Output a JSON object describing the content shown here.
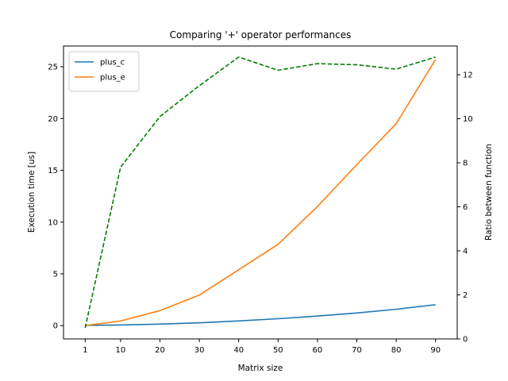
{
  "chart_data": {
    "type": "line",
    "title": "Comparing '+' operator performances",
    "xlabel": "Matrix size",
    "ylabel": "Execution time [us]",
    "y2label": "Ratio between function",
    "x": [
      1,
      10,
      20,
      30,
      40,
      50,
      60,
      70,
      80,
      90
    ],
    "xticks": [
      1,
      10,
      20,
      30,
      40,
      50,
      60,
      70,
      80,
      90
    ],
    "xlim": [
      -4.5,
      95.5
    ],
    "ylim": [
      -1.2858,
      27.0
    ],
    "yticks": [
      0,
      5,
      10,
      15,
      20,
      25
    ],
    "y2lim": [
      0,
      13.3
    ],
    "y2ticks": [
      0,
      2,
      4,
      6,
      8,
      10,
      12
    ],
    "legend_position": "top-left",
    "series": [
      {
        "name": "plus_c",
        "axis": "left",
        "color": "#1f77b4",
        "style": "solid",
        "values": [
          0.02,
          0.06,
          0.15,
          0.27,
          0.45,
          0.67,
          0.92,
          1.22,
          1.58,
          2.02
        ]
      },
      {
        "name": "plus_e",
        "axis": "left",
        "color": "#ff7f0e",
        "style": "solid",
        "values": [
          0.0,
          0.45,
          1.45,
          2.95,
          5.4,
          7.85,
          11.5,
          15.55,
          19.5,
          25.7
        ]
      },
      {
        "name": "",
        "axis": "right",
        "color": "#008000",
        "style": "dashed",
        "values": [
          0.5,
          7.8,
          10.1,
          11.5,
          12.8,
          12.2,
          12.5,
          12.45,
          12.25,
          12.8
        ]
      }
    ]
  }
}
